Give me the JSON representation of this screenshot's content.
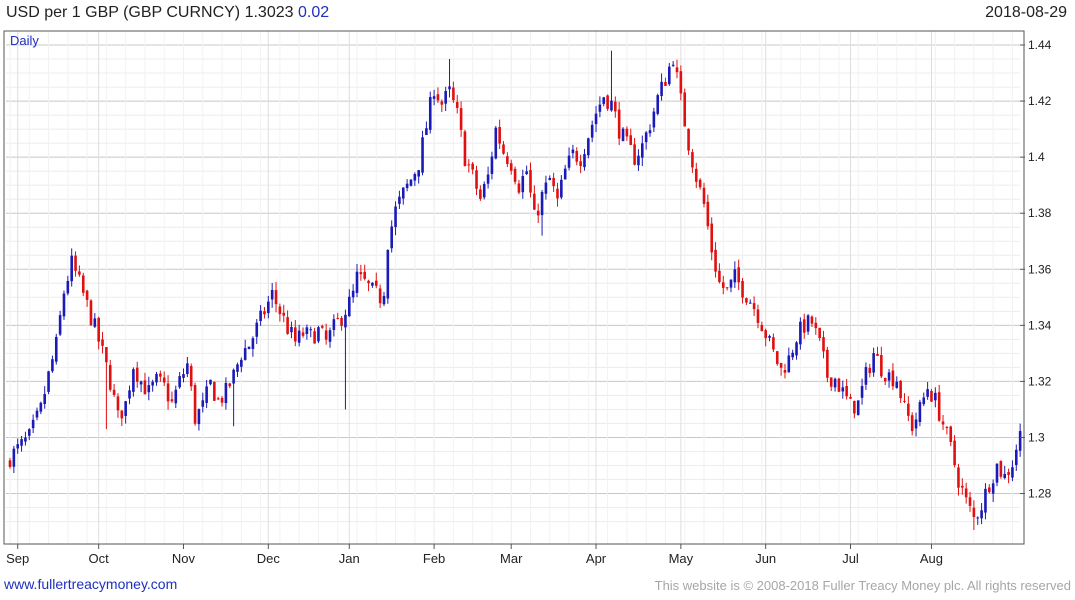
{
  "header": {
    "title": "USD per 1 GBP (GBP CURNCY) 1.3023",
    "change": "0.02",
    "date": "2018-08-29"
  },
  "footer": {
    "website": "www.fullertreacymoney.com",
    "copyright": "This website is © 2008-2018 Fuller Treacy Money plc. All rights reserved"
  },
  "colors": {
    "up": "#1a1ab8",
    "down": "#e01010",
    "accent_text": "#1f2fbf",
    "grid": "#e3e3e3",
    "grid_major": "#bdbdbd"
  },
  "chart_data": {
    "type": "candlestick",
    "period_label": "Daily",
    "ylim": [
      1.262,
      1.445
    ],
    "y_ticks": [
      1.28,
      1.3,
      1.32,
      1.34,
      1.36,
      1.38,
      1.4,
      1.42,
      1.44
    ],
    "y_tick_labels": [
      "1.28",
      "1.3",
      "1.32",
      "1.34",
      "1.36",
      "1.38",
      "1.4",
      "1.42",
      "1.44"
    ],
    "x_labels": [
      "Sep",
      "Oct",
      "Nov",
      "Dec",
      "Jan",
      "Feb",
      "Mar",
      "Apr",
      "May",
      "Jun",
      "Jul",
      "Aug"
    ],
    "x_label_bar_index": [
      2,
      23,
      45,
      67,
      88,
      110,
      130,
      152,
      174,
      196,
      218,
      239
    ],
    "grid": true,
    "close_path": [
      [
        0,
        1.293
      ],
      [
        5,
        1.3
      ],
      [
        8,
        1.31
      ],
      [
        10,
        1.322
      ],
      [
        12,
        1.333
      ],
      [
        14,
        1.352
      ],
      [
        16,
        1.362
      ],
      [
        18,
        1.355
      ],
      [
        20,
        1.347
      ],
      [
        22,
        1.339
      ],
      [
        24,
        1.33
      ],
      [
        26,
        1.32
      ],
      [
        28,
        1.307
      ],
      [
        30,
        1.312
      ],
      [
        32,
        1.326
      ],
      [
        34,
        1.32
      ],
      [
        36,
        1.316
      ],
      [
        38,
        1.32
      ],
      [
        40,
        1.318
      ],
      [
        42,
        1.312
      ],
      [
        44,
        1.32
      ],
      [
        46,
        1.326
      ],
      [
        48,
        1.307
      ],
      [
        50,
        1.311
      ],
      [
        52,
        1.319
      ],
      [
        54,
        1.313
      ],
      [
        56,
        1.316
      ],
      [
        58,
        1.322
      ],
      [
        60,
        1.33
      ],
      [
        62,
        1.333
      ],
      [
        64,
        1.339
      ],
      [
        66,
        1.345
      ],
      [
        68,
        1.351
      ],
      [
        70,
        1.345
      ],
      [
        72,
        1.339
      ],
      [
        74,
        1.334
      ],
      [
        76,
        1.337
      ],
      [
        78,
        1.336
      ],
      [
        80,
        1.338
      ],
      [
        82,
        1.334
      ],
      [
        84,
        1.339
      ],
      [
        86,
        1.343
      ],
      [
        88,
        1.348
      ],
      [
        89,
        1.351
      ],
      [
        90,
        1.357
      ],
      [
        92,
        1.355
      ],
      [
        94,
        1.352
      ],
      [
        96,
        1.35
      ],
      [
        97,
        1.353
      ],
      [
        98,
        1.37
      ],
      [
        100,
        1.381
      ],
      [
        102,
        1.387
      ],
      [
        104,
        1.392
      ],
      [
        106,
        1.398
      ],
      [
        108,
        1.411
      ],
      [
        110,
        1.425
      ],
      [
        112,
        1.419
      ],
      [
        114,
        1.423
      ],
      [
        116,
        1.415
      ],
      [
        118,
        1.4
      ],
      [
        120,
        1.393
      ],
      [
        122,
        1.385
      ],
      [
        124,
        1.393
      ],
      [
        126,
        1.41
      ],
      [
        128,
        1.402
      ],
      [
        130,
        1.398
      ],
      [
        132,
        1.39
      ],
      [
        134,
        1.395
      ],
      [
        136,
        1.378
      ],
      [
        138,
        1.386
      ],
      [
        140,
        1.392
      ],
      [
        142,
        1.384
      ],
      [
        144,
        1.395
      ],
      [
        146,
        1.401
      ],
      [
        148,
        1.4
      ],
      [
        150,
        1.408
      ],
      [
        152,
        1.416
      ],
      [
        154,
        1.422
      ],
      [
        156,
        1.419
      ],
      [
        158,
        1.41
      ],
      [
        160,
        1.404
      ],
      [
        162,
        1.4
      ],
      [
        164,
        1.404
      ],
      [
        166,
        1.412
      ],
      [
        168,
        1.421
      ],
      [
        170,
        1.428
      ],
      [
        172,
        1.436
      ],
      [
        174,
        1.42
      ],
      [
        176,
        1.405
      ],
      [
        178,
        1.393
      ],
      [
        180,
        1.383
      ],
      [
        182,
        1.367
      ],
      [
        184,
        1.355
      ],
      [
        186,
        1.352
      ],
      [
        188,
        1.357
      ],
      [
        190,
        1.353
      ],
      [
        192,
        1.349
      ],
      [
        194,
        1.344
      ],
      [
        196,
        1.337
      ],
      [
        198,
        1.33
      ],
      [
        200,
        1.324
      ],
      [
        202,
        1.328
      ],
      [
        204,
        1.336
      ],
      [
        206,
        1.34
      ],
      [
        208,
        1.341
      ],
      [
        210,
        1.333
      ],
      [
        212,
        1.322
      ],
      [
        214,
        1.321
      ],
      [
        216,
        1.316
      ],
      [
        218,
        1.311
      ],
      [
        220,
        1.312
      ],
      [
        222,
        1.322
      ],
      [
        224,
        1.33
      ],
      [
        226,
        1.325
      ],
      [
        228,
        1.322
      ],
      [
        230,
        1.321
      ],
      [
        232,
        1.31
      ],
      [
        234,
        1.304
      ],
      [
        236,
        1.31
      ],
      [
        238,
        1.318
      ],
      [
        240,
        1.313
      ],
      [
        242,
        1.305
      ],
      [
        244,
        1.296
      ],
      [
        246,
        1.285
      ],
      [
        248,
        1.277
      ],
      [
        250,
        1.271
      ],
      [
        252,
        1.276
      ],
      [
        254,
        1.284
      ],
      [
        256,
        1.29
      ],
      [
        258,
        1.286
      ],
      [
        260,
        1.291
      ],
      [
        262,
        1.302
      ]
    ],
    "spikes": [
      [
        25,
        1.303
      ],
      [
        58,
        1.304
      ],
      [
        87,
        1.31
      ],
      [
        114,
        1.435
      ],
      [
        138,
        1.372
      ],
      [
        156,
        1.438
      ],
      [
        250,
        1.267
      ]
    ],
    "last": {
      "close": 1.3023,
      "change": 0.02
    }
  }
}
